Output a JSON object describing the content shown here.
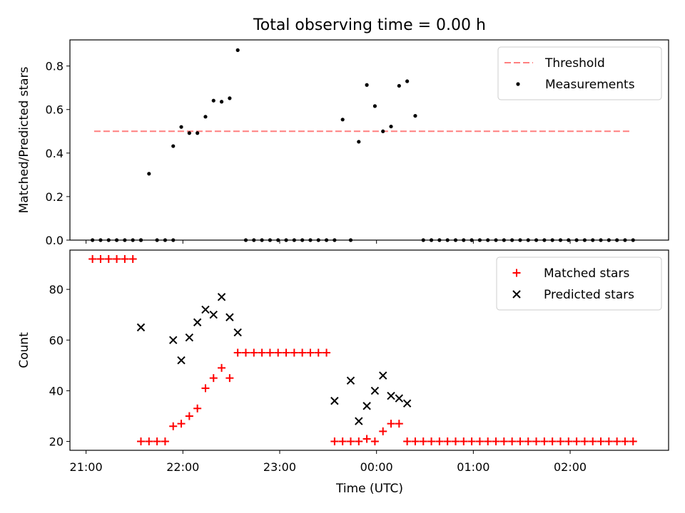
{
  "figure": {
    "title": "Total observing time = 0.00 h",
    "xlabel": "Time (UTC)",
    "x_tick_labels": [
      "21:00",
      "22:00",
      "23:00",
      "00:00",
      "01:00",
      "02:00"
    ]
  },
  "chart_data": [
    {
      "type": "scatter",
      "ylabel": "Matched/Predicted stars",
      "xlim": [
        "20:50",
        "03:01"
      ],
      "ylim": [
        0,
        0.92
      ],
      "yticks": [
        "0.0",
        "0.2",
        "0.4",
        "0.6",
        "0.8"
      ],
      "legend_position": "top-right",
      "threshold": {
        "name": "Threshold",
        "value": 0.5,
        "x_start": "21:05",
        "x_end": "02:38",
        "color": "#ff7f7f",
        "style": "dashed"
      },
      "series": [
        {
          "name": "Measurements",
          "color": "#000000",
          "marker": "dot",
          "points": [
            [
              "21:04",
              0
            ],
            [
              "21:09",
              0
            ],
            [
              "21:14",
              0
            ],
            [
              "21:19",
              0
            ],
            [
              "21:24",
              0
            ],
            [
              "21:29",
              0
            ],
            [
              "21:34",
              0
            ],
            [
              "21:34",
              0
            ],
            [
              "21:39",
              0.305
            ],
            [
              "21:44",
              0
            ],
            [
              "21:49",
              0
            ],
            [
              "21:54",
              0
            ],
            [
              "21:54",
              0.432
            ],
            [
              "21:59",
              0.52
            ],
            [
              "22:04",
              0.492
            ],
            [
              "22:09",
              0.492
            ],
            [
              "22:14",
              0.567
            ],
            [
              "22:19",
              0.641
            ],
            [
              "22:24",
              0.636
            ],
            [
              "22:29",
              0.652
            ],
            [
              "22:34",
              0.873
            ],
            [
              "22:39",
              0
            ],
            [
              "22:44",
              0
            ],
            [
              "22:49",
              0
            ],
            [
              "22:54",
              0
            ],
            [
              "22:59",
              0
            ],
            [
              "23:04",
              0
            ],
            [
              "23:09",
              0
            ],
            [
              "23:14",
              0
            ],
            [
              "23:19",
              0
            ],
            [
              "23:24",
              0
            ],
            [
              "23:29",
              0
            ],
            [
              "23:34",
              0
            ],
            [
              "23:39",
              0.554
            ],
            [
              "23:44",
              0
            ],
            [
              "23:49",
              0.452
            ],
            [
              "23:54",
              0.713
            ],
            [
              "23:59",
              0.616
            ],
            [
              "00:04",
              0.5
            ],
            [
              "00:09",
              0.522
            ],
            [
              "00:14",
              0.709
            ],
            [
              "00:19",
              0.73
            ],
            [
              "00:24",
              0.571
            ],
            [
              "00:29",
              0
            ],
            [
              "00:34",
              0
            ],
            [
              "00:39",
              0
            ],
            [
              "00:44",
              0
            ],
            [
              "00:49",
              0
            ],
            [
              "00:54",
              0
            ],
            [
              "00:59",
              0
            ],
            [
              "01:04",
              0
            ],
            [
              "01:09",
              0
            ],
            [
              "01:14",
              0
            ],
            [
              "01:19",
              0
            ],
            [
              "01:24",
              0
            ],
            [
              "01:29",
              0
            ],
            [
              "01:34",
              0
            ],
            [
              "01:39",
              0
            ],
            [
              "01:44",
              0
            ],
            [
              "01:49",
              0
            ],
            [
              "01:54",
              0
            ],
            [
              "01:59",
              0
            ],
            [
              "02:04",
              0
            ],
            [
              "02:09",
              0
            ],
            [
              "02:14",
              0
            ],
            [
              "02:19",
              0
            ],
            [
              "02:24",
              0
            ],
            [
              "02:29",
              0
            ],
            [
              "02:34",
              0
            ],
            [
              "02:39",
              0
            ]
          ]
        }
      ]
    },
    {
      "type": "scatter",
      "ylabel": "Count",
      "xlim": [
        "20:50",
        "03:01"
      ],
      "ylim": [
        16.5,
        95.5
      ],
      "yticks": [
        "20",
        "40",
        "60",
        "80"
      ],
      "legend_position": "top-right",
      "series": [
        {
          "name": "Matched stars",
          "color": "#ff0000",
          "marker": "plus",
          "points": [
            [
              "21:04",
              92
            ],
            [
              "21:09",
              92
            ],
            [
              "21:14",
              92
            ],
            [
              "21:19",
              92
            ],
            [
              "21:24",
              92
            ],
            [
              "21:29",
              92
            ],
            [
              "21:34",
              20
            ],
            [
              "21:39",
              20
            ],
            [
              "21:44",
              20
            ],
            [
              "21:49",
              20
            ],
            [
              "21:54",
              26
            ],
            [
              "21:59",
              27
            ],
            [
              "22:04",
              30
            ],
            [
              "22:09",
              33
            ],
            [
              "22:14",
              41
            ],
            [
              "22:19",
              45
            ],
            [
              "22:24",
              49
            ],
            [
              "22:29",
              45
            ],
            [
              "22:34",
              55
            ],
            [
              "22:39",
              55
            ],
            [
              "22:44",
              55
            ],
            [
              "22:49",
              55
            ],
            [
              "22:54",
              55
            ],
            [
              "22:59",
              55
            ],
            [
              "23:04",
              55
            ],
            [
              "23:09",
              55
            ],
            [
              "23:14",
              55
            ],
            [
              "23:19",
              55
            ],
            [
              "23:24",
              55
            ],
            [
              "23:29",
              55
            ],
            [
              "23:34",
              20
            ],
            [
              "23:39",
              20
            ],
            [
              "23:44",
              20
            ],
            [
              "23:49",
              20
            ],
            [
              "23:54",
              21
            ],
            [
              "23:59",
              20
            ],
            [
              "00:04",
              24
            ],
            [
              "00:09",
              27
            ],
            [
              "00:14",
              27
            ],
            [
              "00:19",
              20
            ],
            [
              "00:24",
              20
            ],
            [
              "00:29",
              20
            ],
            [
              "00:34",
              20
            ],
            [
              "00:39",
              20
            ],
            [
              "00:44",
              20
            ],
            [
              "00:49",
              20
            ],
            [
              "00:54",
              20
            ],
            [
              "00:59",
              20
            ],
            [
              "01:04",
              20
            ],
            [
              "01:09",
              20
            ],
            [
              "01:14",
              20
            ],
            [
              "01:19",
              20
            ],
            [
              "01:24",
              20
            ],
            [
              "01:29",
              20
            ],
            [
              "01:34",
              20
            ],
            [
              "01:39",
              20
            ],
            [
              "01:44",
              20
            ],
            [
              "01:49",
              20
            ],
            [
              "01:54",
              20
            ],
            [
              "01:59",
              20
            ],
            [
              "02:04",
              20
            ],
            [
              "02:09",
              20
            ],
            [
              "02:14",
              20
            ],
            [
              "02:19",
              20
            ],
            [
              "02:24",
              20
            ],
            [
              "02:29",
              20
            ],
            [
              "02:34",
              20
            ],
            [
              "02:39",
              20
            ]
          ]
        },
        {
          "name": "Predicted stars",
          "color": "#000000",
          "marker": "x",
          "points": [
            [
              "21:34",
              65
            ],
            [
              "21:54",
              60
            ],
            [
              "21:59",
              52
            ],
            [
              "22:04",
              61
            ],
            [
              "22:09",
              67
            ],
            [
              "22:14",
              72
            ],
            [
              "22:19",
              70
            ],
            [
              "22:24",
              77
            ],
            [
              "22:29",
              69
            ],
            [
              "22:34",
              63
            ],
            [
              "23:34",
              36
            ],
            [
              "23:44",
              44
            ],
            [
              "23:49",
              28
            ],
            [
              "23:54",
              34
            ],
            [
              "23:59",
              40
            ],
            [
              "00:04",
              46
            ],
            [
              "00:09",
              38
            ],
            [
              "00:14",
              37
            ],
            [
              "00:19",
              35
            ]
          ]
        }
      ]
    }
  ]
}
